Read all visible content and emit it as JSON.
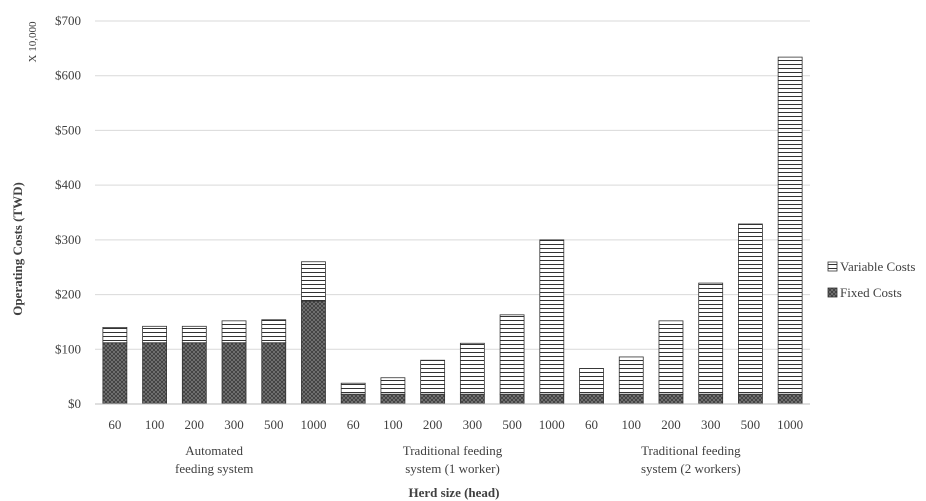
{
  "chart_data": {
    "type": "bar",
    "stacked": true,
    "ylabel": "Operating Costs (TWD)",
    "yunit": "X 10,000",
    "xlabel": "Herd size (head)",
    "ylim": [
      0,
      700
    ],
    "yticks": [
      "$0",
      "$100",
      "$200",
      "$300",
      "$400",
      "$500",
      "$600",
      "$700"
    ],
    "ytick_values": [
      0,
      100,
      200,
      300,
      400,
      500,
      600,
      700
    ],
    "grid": true,
    "legend_position": "right",
    "categories": [
      "60",
      "100",
      "200",
      "300",
      "500",
      "1000",
      "60",
      "100",
      "200",
      "300",
      "500",
      "1000",
      "60",
      "100",
      "200",
      "300",
      "500",
      "1000"
    ],
    "groups": [
      {
        "line1": "Automated",
        "line2": "feeding system",
        "size": 6
      },
      {
        "line1": "Traditional feeding",
        "line2": "system (1 worker)",
        "size": 6
      },
      {
        "line1": "Traditional feeding",
        "line2": "system (2 workers)",
        "size": 6
      }
    ],
    "series": [
      {
        "name": "Fixed Costs",
        "pattern": "cross-hatch",
        "color": "#6e6e6e",
        "values": [
          112,
          112,
          112,
          112,
          112,
          188,
          18,
          18,
          18,
          18,
          18,
          18,
          18,
          18,
          18,
          18,
          18,
          18
        ]
      },
      {
        "name": "Variable Costs",
        "pattern": "horizontal-lines",
        "color": "#ffffff",
        "values": [
          28,
          30,
          30,
          40,
          42,
          72,
          20,
          30,
          62,
          93,
          145,
          282,
          47,
          68,
          134,
          203,
          311,
          616
        ]
      }
    ],
    "legend": [
      "Variable Costs",
      "Fixed Costs"
    ]
  }
}
